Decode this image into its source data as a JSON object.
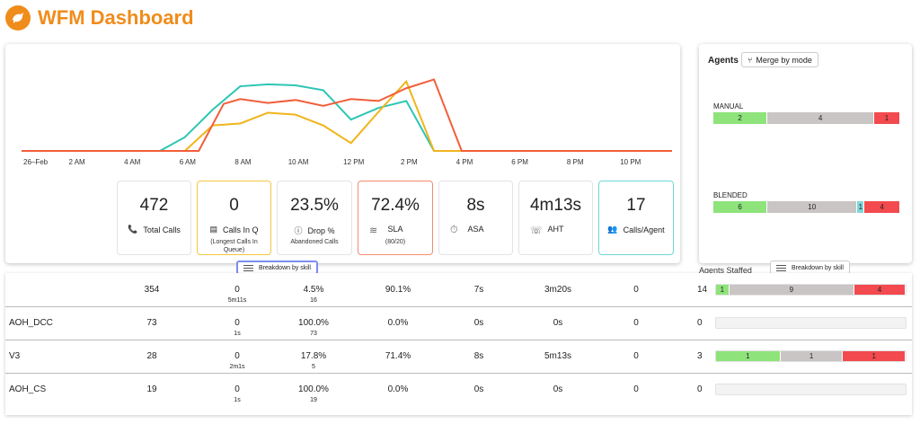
{
  "header": {
    "title": "WFM Dashboard",
    "logo_icon": "bird-icon"
  },
  "chart_data": {
    "type": "line",
    "x_labels": [
      "26–Feb",
      "2 AM",
      "4 AM",
      "6 AM",
      "8 AM",
      "10 AM",
      "12 PM",
      "2 PM",
      "4 PM",
      "6 PM",
      "8 PM",
      "10 PM"
    ],
    "x_hours": [
      0,
      2,
      4,
      6,
      8,
      10,
      12,
      14,
      16,
      18,
      20,
      22
    ],
    "ylim": [
      0,
      100
    ],
    "series": [
      {
        "color": "#2dc5b6",
        "points": [
          [
            0,
            0
          ],
          [
            5,
            0
          ],
          [
            5.9,
            14
          ],
          [
            6.9,
            42
          ],
          [
            7.9,
            66
          ],
          [
            8.9,
            68
          ],
          [
            9.9,
            67
          ],
          [
            10.9,
            62
          ],
          [
            11.9,
            32
          ],
          [
            12.9,
            44
          ],
          [
            13.9,
            51
          ],
          [
            14.9,
            0
          ],
          [
            16,
            0
          ],
          [
            23.5,
            0
          ]
        ]
      },
      {
        "color": "#f0b51b",
        "points": [
          [
            0,
            0
          ],
          [
            5.9,
            0
          ],
          [
            6.9,
            26
          ],
          [
            7.9,
            28
          ],
          [
            8.9,
            39
          ],
          [
            9.9,
            37
          ],
          [
            10.9,
            26
          ],
          [
            11.9,
            8
          ],
          [
            12.9,
            40
          ],
          [
            13.9,
            71
          ],
          [
            14.9,
            0
          ],
          [
            23.5,
            0
          ]
        ]
      },
      {
        "color": "#f25e3a",
        "points": [
          [
            0,
            0
          ],
          [
            6.4,
            0
          ],
          [
            7.3,
            48
          ],
          [
            7.9,
            53
          ],
          [
            8.9,
            49
          ],
          [
            9.9,
            52
          ],
          [
            10.9,
            46
          ],
          [
            11.9,
            53
          ],
          [
            12.9,
            51
          ],
          [
            13.9,
            64
          ],
          [
            14.9,
            73
          ],
          [
            15.9,
            0
          ],
          [
            23.5,
            0
          ]
        ]
      }
    ]
  },
  "kpis": [
    {
      "value": "472",
      "label": "Total Calls",
      "sub": "",
      "icon": "phone-icon"
    },
    {
      "value": "0",
      "label": "Calls In Q",
      "sub": "(Longest Calls In Queue)",
      "icon": "queue-icon"
    },
    {
      "value": "23.5%",
      "label": "Drop %",
      "sub": "Abandoned Calls",
      "icon": "info-icon"
    },
    {
      "value": "72.4%",
      "label": "SLA",
      "sub": "(80/20)",
      "icon": "handshake-icon"
    },
    {
      "value": "8s",
      "label": "ASA",
      "sub": "",
      "icon": "stopwatch-icon"
    },
    {
      "value": "4m13s",
      "label": "AHT",
      "sub": "",
      "icon": "headset-icon"
    },
    {
      "value": "17",
      "label": "Calls/Agent",
      "sub": "",
      "icon": "people-icon"
    }
  ],
  "agents": {
    "title": "Agents",
    "merge_label": "Merge by mode",
    "modes": [
      {
        "name": "MANUAL",
        "segments": [
          {
            "value": "2",
            "share": 0.29
          },
          {
            "value": "4",
            "share": 0.57
          },
          {
            "value": "1",
            "share": 0.14
          }
        ]
      },
      {
        "name": "BLENDED",
        "segments": [
          {
            "value": "6",
            "share": 0.29
          },
          {
            "value": "10",
            "share": 0.48
          },
          {
            "value": "1",
            "share": 0.04
          },
          {
            "value": "4",
            "share": 0.19
          }
        ]
      }
    ],
    "staffed_label": "Agents Staffed"
  },
  "breakdown_label": "Breakdown by skill",
  "table": {
    "rows": [
      {
        "name": "",
        "calls": "354",
        "inq": "0",
        "inq_sub": "5m11s",
        "drop": "4.5%",
        "drop_sub": "16",
        "sla": "90.1%",
        "asa": "7s",
        "aht": "3m20s",
        "cpa": "0",
        "staffed": "14",
        "segments": [
          {
            "value": "1",
            "share": 0.07
          },
          {
            "value": "9",
            "share": 0.66
          },
          {
            "value": "4",
            "share": 0.27
          }
        ]
      },
      {
        "name": "AOH_DCC",
        "calls": "73",
        "inq": "0",
        "inq_sub": "1s",
        "drop": "100.0%",
        "drop_sub": "73",
        "sla": "0.0%",
        "asa": "0s",
        "aht": "0s",
        "cpa": "0",
        "staffed": "0",
        "segments": []
      },
      {
        "name": "V3",
        "calls": "28",
        "inq": "0",
        "inq_sub": "2m1s",
        "drop": "17.8%",
        "drop_sub": "5",
        "sla": "71.4%",
        "asa": "8s",
        "aht": "5m13s",
        "cpa": "0",
        "staffed": "3",
        "segments": [
          {
            "value": "1",
            "share": 0.34
          },
          {
            "value": "1",
            "share": 0.33
          },
          {
            "value": "1",
            "share": 0.33
          }
        ]
      },
      {
        "name": "AOH_CS",
        "calls": "19",
        "inq": "0",
        "inq_sub": "1s",
        "drop": "100.0%",
        "drop_sub": "19",
        "sla": "0.0%",
        "asa": "0s",
        "aht": "0s",
        "cpa": "0",
        "staffed": "0",
        "segments": []
      }
    ]
  }
}
